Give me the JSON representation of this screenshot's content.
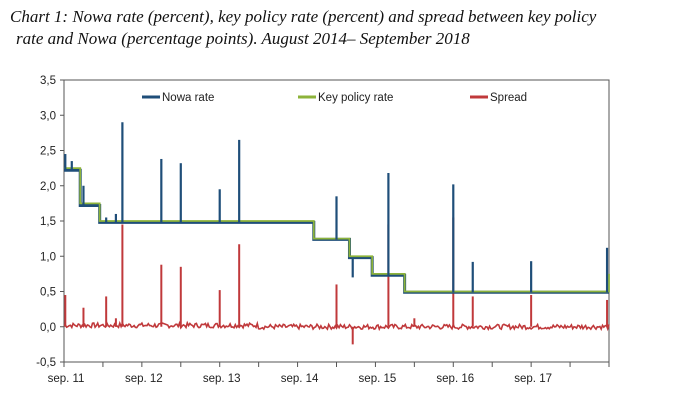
{
  "title": {
    "line1": "Chart 1: Nowa rate (percent), key policy rate (percent) and spread between key policy",
    "line2": "rate and Nowa (percentage points). August 2014– September 2018"
  },
  "chart_data": {
    "type": "line",
    "ylim": [
      -0.5,
      3.5
    ],
    "yticks": [
      "3,5",
      "3,0",
      "2,5",
      "2,0",
      "1,5",
      "1,0",
      "0,5",
      "0,0",
      "-0,5"
    ],
    "ytick_values": [
      3.5,
      3.0,
      2.5,
      2.0,
      1.5,
      1.0,
      0.5,
      0.0,
      -0.5
    ],
    "xlim": [
      0,
      84
    ],
    "xticks": [
      "sep. 11",
      "sep. 12",
      "sep. 13",
      "sep. 14",
      "sep. 15",
      "sep. 16",
      "sep. 17"
    ],
    "xtick_positions": [
      0,
      12,
      24,
      36,
      48,
      60,
      72
    ],
    "grid": false,
    "legend_position": "top",
    "series": [
      {
        "name": "Nowa rate",
        "color": "#1f4e79",
        "steps": [
          [
            0,
            2.22
          ],
          [
            2.5,
            1.72
          ],
          [
            5.5,
            1.48
          ],
          [
            38.5,
            1.24
          ],
          [
            44,
            0.98
          ],
          [
            47.5,
            0.73
          ],
          [
            52.5,
            0.49
          ],
          [
            84,
            0.49
          ]
        ],
        "spikes": [
          [
            0.2,
            2.45
          ],
          [
            1.2,
            2.35
          ],
          [
            3.0,
            2.0
          ],
          [
            6.5,
            1.55
          ],
          [
            8.0,
            1.6
          ],
          [
            9.0,
            2.9
          ],
          [
            15.0,
            2.38
          ],
          [
            18.0,
            2.32
          ],
          [
            24.0,
            1.95
          ],
          [
            27.0,
            2.65
          ],
          [
            42.0,
            1.85
          ],
          [
            44.5,
            0.7
          ],
          [
            50.0,
            2.18
          ],
          [
            60.0,
            2.02
          ],
          [
            63.0,
            0.92
          ],
          [
            72.0,
            0.93
          ],
          [
            83.7,
            1.12
          ]
        ]
      },
      {
        "name": "Key policy rate",
        "color": "#8db33a",
        "steps": [
          [
            0,
            2.25
          ],
          [
            2.5,
            1.75
          ],
          [
            5.5,
            1.5
          ],
          [
            38.5,
            1.25
          ],
          [
            44,
            1.0
          ],
          [
            47.5,
            0.75
          ],
          [
            52.5,
            0.5
          ],
          [
            84,
            0.75
          ]
        ]
      },
      {
        "name": "Spread",
        "color": "#c0393b",
        "baseline": 0.0,
        "spikes": [
          [
            0.2,
            0.45
          ],
          [
            3.0,
            0.27
          ],
          [
            6.5,
            0.43
          ],
          [
            8.0,
            0.12
          ],
          [
            9.0,
            1.45
          ],
          [
            15.0,
            0.88
          ],
          [
            18.0,
            0.85
          ],
          [
            24.0,
            0.52
          ],
          [
            27.0,
            1.17
          ],
          [
            42.0,
            0.6
          ],
          [
            44.5,
            -0.25
          ],
          [
            50.0,
            1.45
          ],
          [
            54.0,
            0.12
          ],
          [
            60.0,
            1.55
          ],
          [
            63.0,
            0.43
          ],
          [
            72.0,
            0.45
          ],
          [
            83.7,
            0.38
          ]
        ]
      }
    ]
  }
}
